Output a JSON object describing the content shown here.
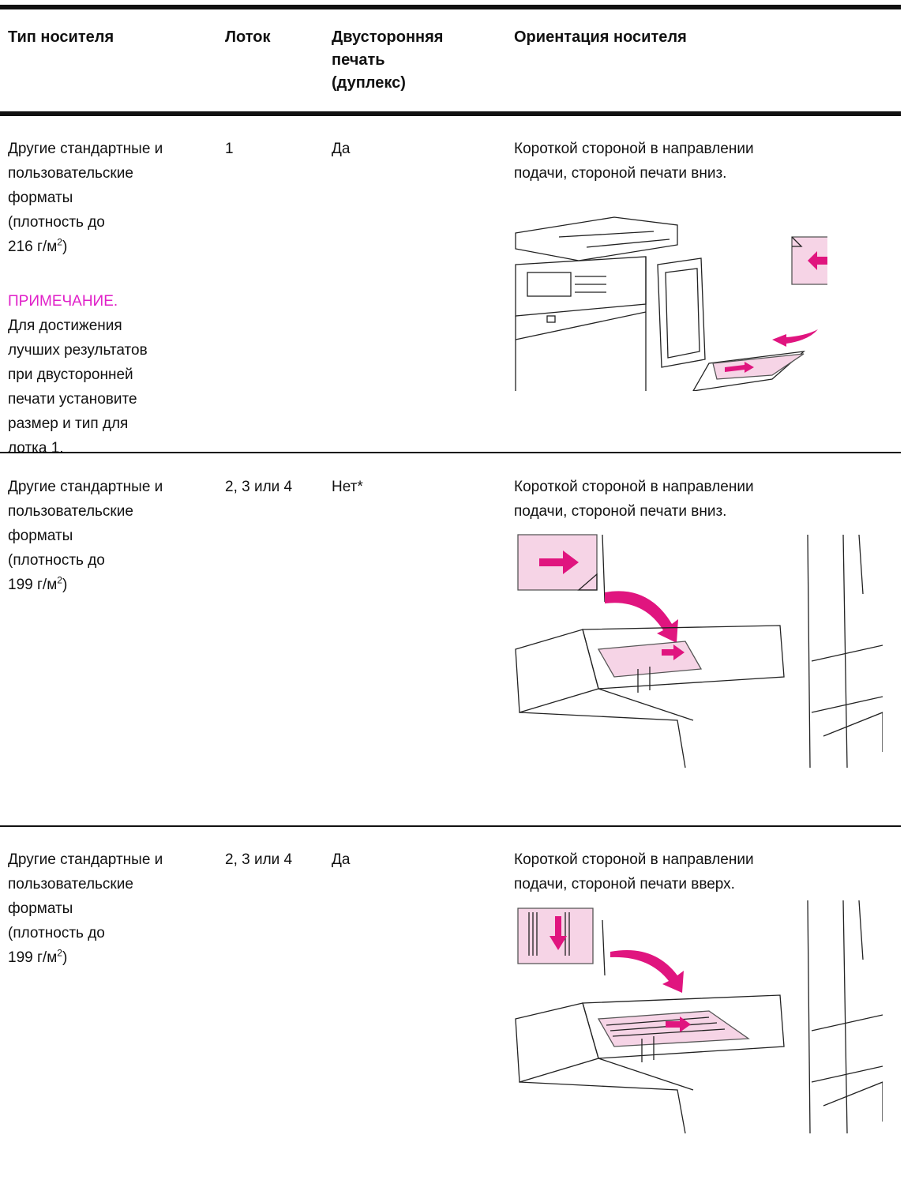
{
  "header": {
    "media_type": "Тип носителя",
    "tray": "Лоток",
    "duplex": [
      "Двусторонняя",
      "печать",
      "(дуплекс)"
    ],
    "orientation": "Ориентация носителя"
  },
  "rows": [
    {
      "media": [
        "Другие стандартные и",
        "пользовательские",
        "форматы",
        "(плотность до"
      ],
      "density": {
        "prefix": "216 г/м",
        "sup": "2",
        "suffix": ")"
      },
      "note_label": "ПРИМЕЧАНИЕ.",
      "note": [
        "Для достижения",
        "лучших результатов",
        "при двусторонней",
        "печати установите",
        "размер и тип для",
        "лотка 1."
      ],
      "tray": "1",
      "duplex": "Да",
      "orientation": [
        "Короткой стороной в направлении",
        "подачи, стороной печати вниз."
      ]
    },
    {
      "media": [
        "Другие стандартные и",
        "пользовательские",
        "форматы",
        "(плотность до"
      ],
      "density": {
        "prefix": "199 г/м",
        "sup": "2",
        "suffix": ")"
      },
      "tray": "2, 3 или 4",
      "duplex": "Нет*",
      "orientation": [
        "Короткой стороной в направлении",
        "подачи, стороной печати вниз."
      ]
    },
    {
      "media": [
        "Другие стандартные и",
        "пользовательские",
        "форматы",
        "(плотность до"
      ],
      "density": {
        "prefix": "199 г/м",
        "sup": "2",
        "suffix": ")"
      },
      "tray": "2, 3 или 4",
      "duplex": "Да",
      "orientation": [
        "Короткой стороной в направлении",
        "подачи, стороной печати вверх."
      ]
    }
  ]
}
